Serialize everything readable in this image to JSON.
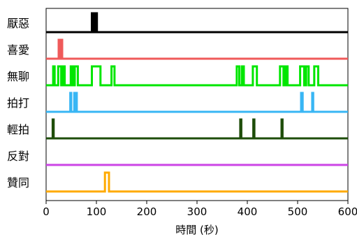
{
  "chart_data": {
    "type": "line",
    "chart_style": "stacked binary event timelines",
    "xlabel": "時間 (秒)",
    "xlim": [
      0,
      600
    ],
    "x_ticks": [
      0,
      100,
      200,
      300,
      400,
      500,
      600
    ],
    "grid": false,
    "legend": "none",
    "series": [
      {
        "name": "厭惡",
        "color": "#000000",
        "segments": [
          [
            91,
            95
          ],
          [
            97,
            101
          ]
        ]
      },
      {
        "name": "喜愛",
        "color": "#ef5a5a",
        "segments": [
          [
            25,
            28
          ],
          [
            30,
            32
          ]
        ]
      },
      {
        "name": "無聊",
        "color": "#00e600",
        "segments": [
          [
            14,
            17
          ],
          [
            24,
            30
          ],
          [
            34,
            37
          ],
          [
            49,
            53
          ],
          [
            57,
            63
          ],
          [
            91,
            108
          ],
          [
            130,
            136
          ],
          [
            379,
            384
          ],
          [
            389,
            393
          ],
          [
            411,
            419
          ],
          [
            465,
            472
          ],
          [
            476,
            480
          ],
          [
            505,
            513
          ],
          [
            517,
            522
          ],
          [
            533,
            541
          ]
        ]
      },
      {
        "name": "拍打",
        "color": "#38b6f4",
        "segments": [
          [
            48,
            50
          ],
          [
            56,
            58
          ],
          [
            59,
            61
          ],
          [
            507,
            510
          ],
          [
            529,
            531
          ]
        ]
      },
      {
        "name": "輕拍",
        "color": "#1e4d0a",
        "segments": [
          [
            13,
            15
          ],
          [
            386,
            388
          ],
          [
            412,
            414
          ],
          [
            468,
            470
          ]
        ]
      },
      {
        "name": "反對",
        "color": "#cc44e6",
        "segments": []
      },
      {
        "name": "贊同",
        "color": "#ffaa00",
        "segments": [
          [
            117,
            125
          ]
        ]
      }
    ]
  }
}
